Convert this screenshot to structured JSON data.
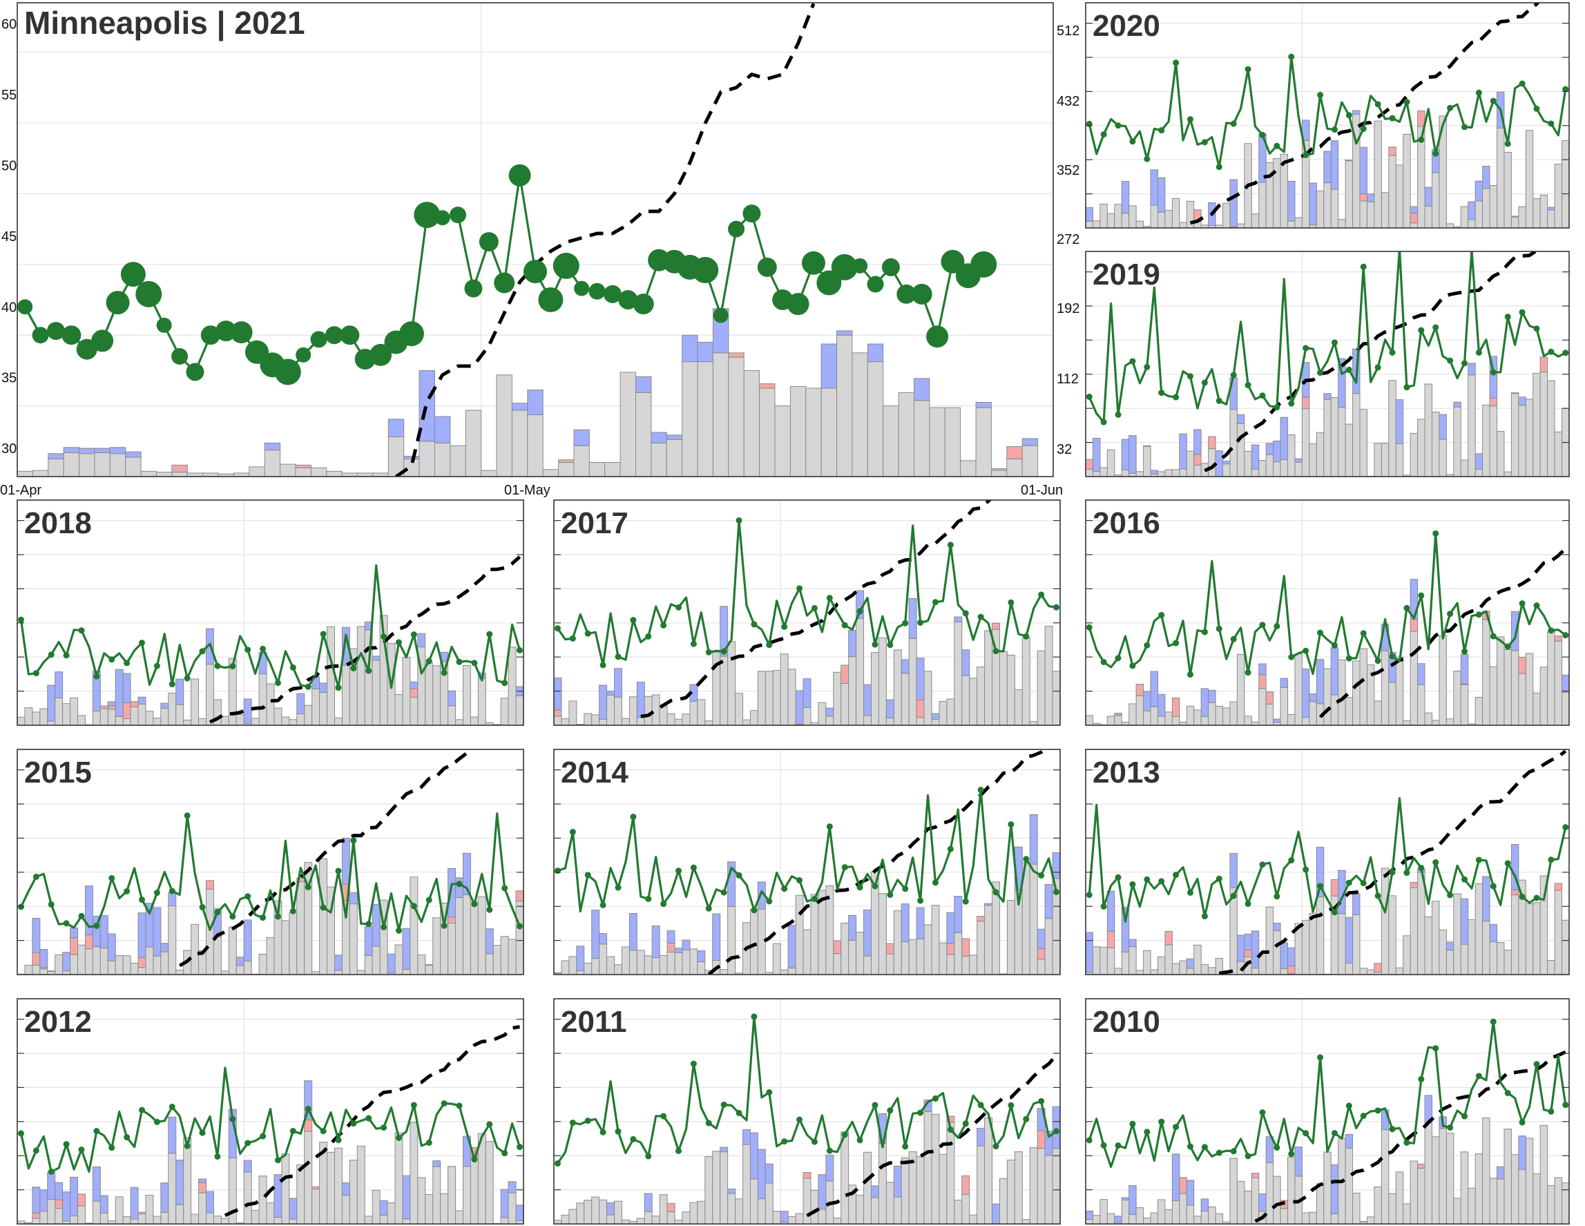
{
  "colors": {
    "green": "#227a30",
    "blue": "#a0aefb",
    "pink": "#f5a7a7",
    "gray": "#d6d6d6",
    "dash": "#000000",
    "title": "#333333"
  },
  "chart_data": [
    {
      "type": "bar",
      "panel": "main",
      "title": "Minneapolis | 2021",
      "left_ticks": [
        "30",
        "35",
        "40",
        "45",
        "50",
        "55",
        "60"
      ],
      "right_ticks": [
        "32",
        "112",
        "192",
        "272",
        "352",
        "432",
        "512"
      ],
      "date_ticks": [
        "01-Apr",
        "01-May",
        "01-Jun"
      ],
      "ylim_left": [
        28,
        61.5
      ],
      "ylim_right": [
        0,
        536
      ],
      "green_series": [
        [
          1,
          40.0
        ],
        [
          2,
          38.0
        ],
        [
          3,
          38.3
        ],
        [
          4,
          38.0
        ],
        [
          5,
          37.0
        ],
        [
          6,
          37.6
        ],
        [
          7,
          40.3
        ],
        [
          8,
          42.3
        ],
        [
          9,
          40.9
        ],
        [
          10,
          38.7
        ],
        [
          11,
          36.5
        ],
        [
          12,
          35.4
        ],
        [
          13,
          38.0
        ],
        [
          14,
          38.3
        ],
        [
          15,
          38.2
        ],
        [
          16,
          36.8
        ],
        [
          17,
          35.9
        ],
        [
          18,
          35.4
        ],
        [
          19,
          36.6
        ],
        [
          20,
          37.7
        ],
        [
          21,
          38.0
        ],
        [
          22,
          38.0
        ],
        [
          23,
          36.3
        ],
        [
          24,
          36.6
        ],
        [
          25,
          37.5
        ],
        [
          26,
          38.1
        ],
        [
          27,
          46.5
        ],
        [
          28,
          46.3
        ],
        [
          29,
          46.5
        ],
        [
          30,
          41.3
        ],
        [
          31,
          44.6
        ],
        [
          32,
          41.7
        ],
        [
          33,
          49.3
        ],
        [
          34,
          42.5
        ],
        [
          35,
          40.5
        ],
        [
          36,
          42.9
        ],
        [
          37,
          41.3
        ],
        [
          38,
          41.1
        ],
        [
          39,
          40.9
        ],
        [
          40,
          40.5
        ],
        [
          41,
          40.2
        ],
        [
          42,
          43.3
        ],
        [
          43,
          43.2
        ],
        [
          44,
          42.8
        ],
        [
          45,
          42.6
        ],
        [
          46,
          39.4
        ],
        [
          47,
          45.5
        ],
        [
          48,
          46.6
        ],
        [
          49,
          42.8
        ],
        [
          50,
          40.5
        ],
        [
          51,
          40.2
        ],
        [
          52,
          43.1
        ],
        [
          53,
          41.7
        ],
        [
          54,
          42.8
        ],
        [
          55,
          42.9
        ],
        [
          56,
          41.6
        ],
        [
          57,
          42.8
        ],
        [
          58,
          40.9
        ],
        [
          59,
          40.9
        ],
        [
          60,
          37.9
        ],
        [
          61,
          43.2
        ],
        [
          62,
          42.2
        ],
        [
          63,
          43.0
        ]
      ],
      "dash_series": [
        [
          25,
          0
        ],
        [
          26,
          12
        ],
        [
          27,
          85
        ],
        [
          28,
          115
        ],
        [
          29,
          125
        ],
        [
          30,
          125
        ],
        [
          31,
          148
        ],
        [
          32,
          185
        ],
        [
          33,
          220
        ],
        [
          34,
          240
        ],
        [
          35,
          255
        ],
        [
          36,
          265
        ],
        [
          37,
          270
        ],
        [
          38,
          275
        ],
        [
          39,
          275
        ],
        [
          40,
          285
        ],
        [
          41,
          300
        ],
        [
          42,
          300
        ],
        [
          43,
          320
        ],
        [
          44,
          355
        ],
        [
          45,
          400
        ],
        [
          46,
          435
        ],
        [
          47,
          440
        ],
        [
          48,
          455
        ],
        [
          49,
          450
        ],
        [
          50,
          455
        ],
        [
          51,
          490
        ],
        [
          52,
          535
        ]
      ],
      "bars": [
        [
          1,
          6,
          0,
          0
        ],
        [
          2,
          7,
          0,
          0
        ],
        [
          3,
          20,
          6,
          0
        ],
        [
          4,
          27,
          6,
          0
        ],
        [
          5,
          26,
          6,
          0
        ],
        [
          6,
          27,
          5,
          0
        ],
        [
          7,
          26,
          7,
          0
        ],
        [
          8,
          22,
          6,
          0
        ],
        [
          9,
          6,
          0,
          0
        ],
        [
          10,
          5,
          0,
          0
        ],
        [
          11,
          5,
          0,
          8
        ],
        [
          12,
          4,
          0,
          0
        ],
        [
          13,
          4,
          0,
          0
        ],
        [
          14,
          3,
          0,
          0
        ],
        [
          15,
          4,
          0,
          0
        ],
        [
          16,
          11,
          0,
          0
        ],
        [
          17,
          30,
          8,
          0
        ],
        [
          18,
          14,
          0,
          0
        ],
        [
          19,
          10,
          0,
          3
        ],
        [
          20,
          10,
          0,
          0
        ],
        [
          21,
          6,
          0,
          0
        ],
        [
          22,
          4,
          0,
          0
        ],
        [
          23,
          4,
          0,
          0
        ],
        [
          24,
          4,
          0,
          0
        ],
        [
          25,
          45,
          20,
          0
        ],
        [
          26,
          20,
          3,
          0
        ],
        [
          27,
          40,
          80,
          0
        ],
        [
          28,
          38,
          30,
          0
        ],
        [
          29,
          35,
          0,
          0
        ],
        [
          30,
          75,
          0,
          0
        ],
        [
          31,
          7,
          0,
          0
        ],
        [
          32,
          115,
          0,
          0
        ],
        [
          33,
          75,
          8,
          0
        ],
        [
          34,
          70,
          28,
          0
        ],
        [
          35,
          8,
          0,
          0
        ],
        [
          36,
          16,
          0,
          3
        ],
        [
          37,
          35,
          18,
          0
        ],
        [
          38,
          16,
          0,
          0
        ],
        [
          39,
          16,
          0,
          0
        ],
        [
          40,
          118,
          0,
          0
        ],
        [
          41,
          95,
          18,
          0
        ],
        [
          42,
          38,
          12,
          0
        ],
        [
          43,
          42,
          5,
          0
        ],
        [
          44,
          130,
          30,
          0
        ],
        [
          45,
          130,
          22,
          0
        ],
        [
          46,
          140,
          50,
          0
        ],
        [
          47,
          135,
          0,
          5
        ],
        [
          48,
          120,
          0,
          0
        ],
        [
          49,
          100,
          0,
          5
        ],
        [
          50,
          80,
          0,
          0
        ],
        [
          51,
          102,
          0,
          0
        ],
        [
          52,
          100,
          0,
          0
        ],
        [
          53,
          100,
          50,
          0
        ],
        [
          54,
          160,
          5,
          0
        ],
        [
          55,
          140,
          0,
          0
        ],
        [
          56,
          130,
          20,
          0
        ],
        [
          57,
          80,
          0,
          0
        ],
        [
          58,
          95,
          0,
          0
        ],
        [
          59,
          86,
          25,
          0
        ],
        [
          60,
          78,
          0,
          0
        ],
        [
          61,
          78,
          0,
          0
        ],
        [
          62,
          18,
          0,
          0
        ],
        [
          63,
          78,
          6,
          0
        ],
        [
          64,
          7,
          0,
          2
        ],
        [
          65,
          20,
          0,
          14
        ],
        [
          66,
          35,
          8,
          0
        ],
        [
          67,
          0,
          0,
          0
        ]
      ]
    },
    {
      "type": "bar",
      "panel": "2020",
      "title": "2020",
      "seed": 2020,
      "has_right_ticks": true
    },
    {
      "type": "bar",
      "panel": "2019",
      "title": "2019",
      "seed": 2019
    },
    {
      "type": "bar",
      "panel": "2018",
      "title": "2018",
      "seed": 2018
    },
    {
      "type": "bar",
      "panel": "2017",
      "title": "2017",
      "seed": 2017
    },
    {
      "type": "bar",
      "panel": "2016",
      "title": "2016",
      "seed": 2016
    },
    {
      "type": "bar",
      "panel": "2015",
      "title": "2015",
      "seed": 2015
    },
    {
      "type": "bar",
      "panel": "2014",
      "title": "2014",
      "seed": 2014
    },
    {
      "type": "bar",
      "panel": "2013",
      "title": "2013",
      "seed": 2013
    },
    {
      "type": "bar",
      "panel": "2012",
      "title": "2012",
      "seed": 2012
    },
    {
      "type": "bar",
      "panel": "2011",
      "title": "2011",
      "seed": 2011
    },
    {
      "type": "bar",
      "panel": "2010",
      "title": "2010",
      "seed": 2010
    }
  ]
}
